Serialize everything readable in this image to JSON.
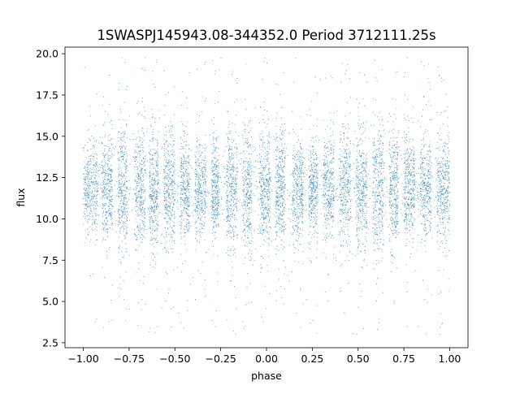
{
  "chart_data": {
    "type": "scatter",
    "title": "1SWASPJ145943.08-344352.0 Period 3712111.25s",
    "xlabel": "phase",
    "ylabel": "flux",
    "xlim": [
      -1.1,
      1.1
    ],
    "ylim": [
      2.2,
      20.4
    ],
    "xticks": [
      -1.0,
      -0.75,
      -0.5,
      -0.25,
      0.0,
      0.25,
      0.5,
      0.75,
      1.0
    ],
    "xtick_labels": [
      "−1.00",
      "−0.75",
      "−0.50",
      "−0.25",
      "0.00",
      "0.25",
      "0.50",
      "0.75",
      "1.00"
    ],
    "yticks": [
      2.5,
      5.0,
      7.5,
      10.0,
      12.5,
      15.0,
      17.5,
      20.0
    ],
    "ytick_labels": [
      "2.5",
      "5.0",
      "7.5",
      "10.0",
      "12.5",
      "15.0",
      "17.5",
      "20.0"
    ],
    "grid": false,
    "point_color": "#1f77b4",
    "series": [
      {
        "x_range": [
          -1.0,
          1.0
        ],
        "y_range": [
          3.0,
          19.8
        ],
        "center_flux": 11.8,
        "typical_spread": [
          9.0,
          14.5
        ],
        "x_bands": [
          [
            -1.0,
            -0.92
          ],
          [
            -0.9,
            -0.84
          ],
          [
            -0.81,
            -0.76
          ],
          [
            -0.72,
            -0.66
          ],
          [
            -0.64,
            -0.59
          ],
          [
            -0.56,
            -0.5
          ],
          [
            -0.47,
            -0.42
          ],
          [
            -0.39,
            -0.33
          ],
          [
            -0.3,
            -0.26
          ],
          [
            -0.22,
            -0.16
          ],
          [
            -0.13,
            -0.08
          ],
          [
            -0.04,
            0.02
          ],
          [
            0.05,
            0.1
          ],
          [
            0.14,
            0.2
          ],
          [
            0.23,
            0.28
          ],
          [
            0.31,
            0.37
          ],
          [
            0.4,
            0.46
          ],
          [
            0.49,
            0.55
          ],
          [
            0.58,
            0.64
          ],
          [
            0.67,
            0.72
          ],
          [
            0.75,
            0.81
          ],
          [
            0.84,
            0.9
          ],
          [
            0.93,
            1.0
          ]
        ]
      }
    ]
  }
}
